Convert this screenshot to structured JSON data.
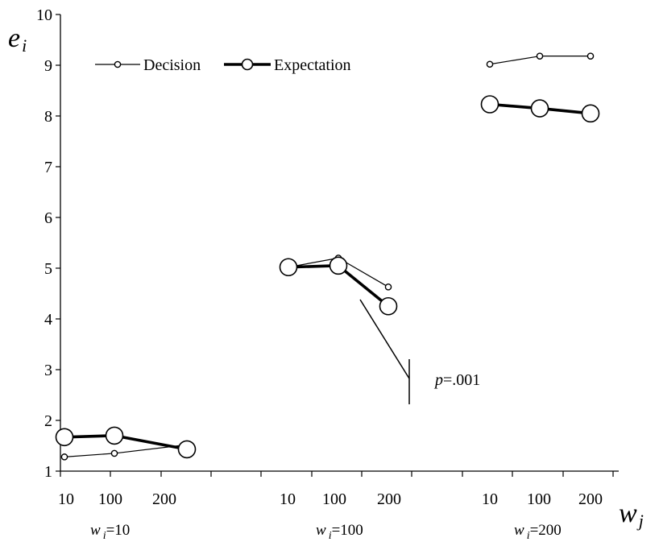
{
  "chart_data": {
    "type": "line",
    "ylabel": "e",
    "ylabel_sub": "i",
    "xlabel": "w",
    "xlabel_sub": "j",
    "ylim": [
      1,
      10
    ],
    "y_ticks": [
      "1",
      "2",
      "3",
      "4",
      "5",
      "6",
      "7",
      "8",
      "9",
      "10"
    ],
    "x_tick_labels": [
      "10",
      "100",
      "200"
    ],
    "legend_position": "top-left",
    "groups": [
      {
        "label_var": "w",
        "label_sub": "i",
        "label_value": "=10"
      },
      {
        "label_var": "w",
        "label_sub": "i",
        "label_value": "=100"
      },
      {
        "label_var": "w",
        "label_sub": "i",
        "label_value": "=200"
      }
    ],
    "series": [
      {
        "name": "Decision",
        "style": "thin-small-markers",
        "values": [
          [
            1.28,
            1.35,
            1.52
          ],
          [
            5.02,
            5.2,
            4.63
          ],
          [
            9.02,
            9.18,
            9.18
          ]
        ]
      },
      {
        "name": "Expectation",
        "style": "thick-large-markers",
        "values": [
          [
            1.67,
            1.7,
            1.43
          ],
          [
            5.02,
            5.05,
            4.25
          ],
          [
            8.23,
            8.15,
            8.05
          ]
        ]
      }
    ],
    "annotation": {
      "var": "p",
      "text": "=.001"
    }
  }
}
